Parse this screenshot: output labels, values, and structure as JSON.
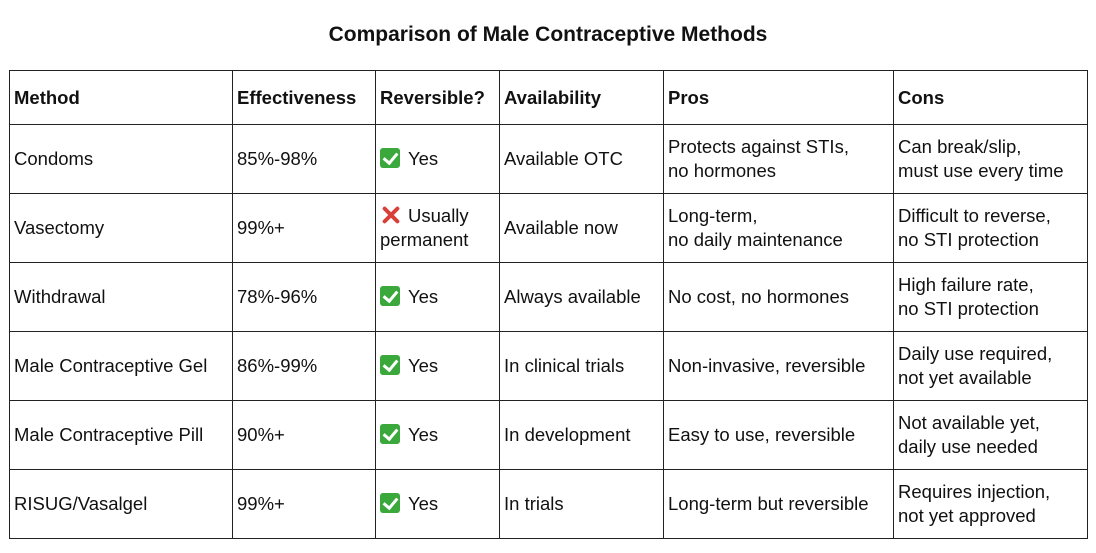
{
  "title": "Comparison of Male Contraceptive Methods",
  "colors": {
    "check": "#3aa83a",
    "cross": "#d8403a",
    "border": "#222222"
  },
  "headers": {
    "method": "Method",
    "effectiveness": "Effectiveness",
    "reversible": "Reversible?",
    "availability": "Availability",
    "pros": "Pros",
    "cons": "Cons"
  },
  "rows": [
    {
      "method": "Condoms",
      "effectiveness": "85%-98%",
      "reversible_icon": "check-icon",
      "reversible": [
        "Yes"
      ],
      "availability": "Available OTC",
      "pros": [
        "Protects against STIs,",
        "no hormones"
      ],
      "cons": [
        "Can break/slip,",
        "must use every time"
      ]
    },
    {
      "method": "Vasectomy",
      "effectiveness": "99%+",
      "reversible_icon": "cross-icon",
      "reversible": [
        "Usually",
        "permanent"
      ],
      "availability": "Available now",
      "pros": [
        "Long-term,",
        "no daily maintenance"
      ],
      "cons": [
        "Difficult to reverse,",
        "no STI protection"
      ]
    },
    {
      "method": "Withdrawal",
      "effectiveness": "78%-96%",
      "reversible_icon": "check-icon",
      "reversible": [
        "Yes"
      ],
      "availability": "Always available",
      "pros": [
        "No cost, no hormones"
      ],
      "cons": [
        "High failure rate,",
        "no STI protection"
      ]
    },
    {
      "method": "Male Contraceptive Gel",
      "effectiveness": "86%-99%",
      "reversible_icon": "check-icon",
      "reversible": [
        "Yes"
      ],
      "availability": "In clinical trials",
      "pros": [
        "Non-invasive, reversible"
      ],
      "cons": [
        "Daily use required,",
        "not yet available"
      ]
    },
    {
      "method": "Male Contraceptive Pill",
      "effectiveness": "90%+",
      "reversible_icon": "check-icon",
      "reversible": [
        "Yes"
      ],
      "availability": "In development",
      "pros": [
        "Easy to use, reversible"
      ],
      "cons": [
        "Not available yet,",
        "daily use needed"
      ]
    },
    {
      "method": "RISUG/Vasalgel",
      "effectiveness": "99%+",
      "reversible_icon": "check-icon",
      "reversible": [
        "Yes"
      ],
      "availability": "In trials",
      "pros": [
        "Long-term but reversible"
      ],
      "cons": [
        "Requires injection,",
        "not yet approved"
      ]
    }
  ]
}
